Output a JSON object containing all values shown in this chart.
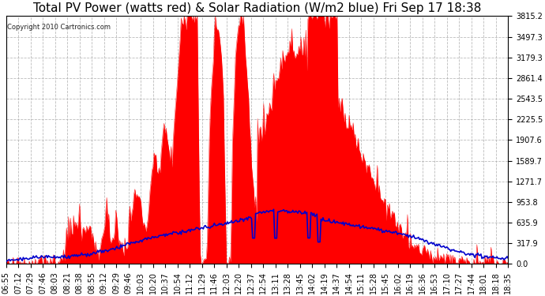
{
  "title": "Total PV Power (watts red) & Solar Radiation (W/m2 blue) Fri Sep 17 18:38",
  "copyright_text": "Copyright 2010 Cartronics.com",
  "y_max": 3815.2,
  "y_ticks": [
    0.0,
    317.9,
    635.9,
    953.8,
    1271.7,
    1589.7,
    1907.6,
    2225.5,
    2543.5,
    2861.4,
    3179.3,
    3497.3,
    3815.2
  ],
  "x_labels": [
    "06:55",
    "07:12",
    "07:29",
    "07:46",
    "08:03",
    "08:21",
    "08:38",
    "08:55",
    "09:12",
    "09:29",
    "09:46",
    "10:03",
    "10:20",
    "10:37",
    "10:54",
    "11:12",
    "11:29",
    "11:46",
    "12:03",
    "12:20",
    "12:37",
    "12:54",
    "13:11",
    "13:28",
    "13:45",
    "14:02",
    "14:19",
    "14:37",
    "14:54",
    "15:11",
    "15:28",
    "15:45",
    "16:02",
    "16:19",
    "16:36",
    "16:53",
    "17:10",
    "17:27",
    "17:44",
    "18:01",
    "18:18",
    "18:35"
  ],
  "background_color": "#ffffff",
  "plot_bg_color": "#ffffff",
  "red_fill_color": "#ff0000",
  "blue_line_color": "#0000cc",
  "grid_color": "#aaaaaa",
  "title_fontsize": 11,
  "tick_fontsize": 7,
  "copyright_fontsize": 6
}
